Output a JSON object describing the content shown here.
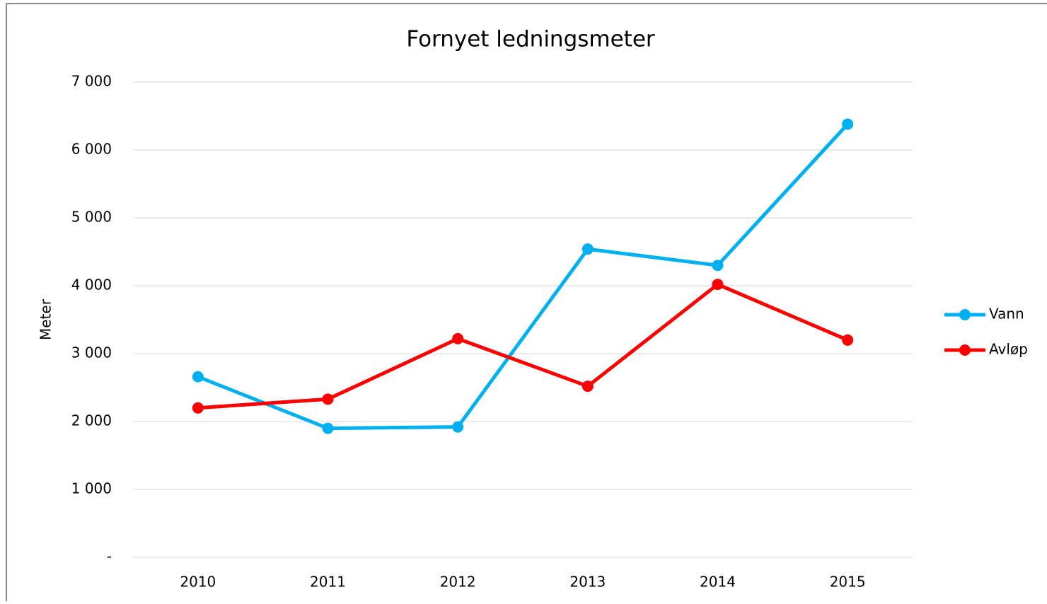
{
  "chart_data": {
    "type": "line",
    "title": "Fornyet ledningsmeter",
    "y_label": "Meter",
    "categories": [
      "2010",
      "2011",
      "2012",
      "2013",
      "2014",
      "2015"
    ],
    "series": [
      {
        "name": "Vann",
        "color": "#00b0f0",
        "values": [
          2660,
          1900,
          1920,
          4540,
          4300,
          6380
        ]
      },
      {
        "name": "Avløp",
        "color": "#ff0000",
        "values": [
          2200,
          2330,
          3220,
          2520,
          4020,
          3200
        ]
      }
    ],
    "ylim": [
      0,
      7000
    ],
    "yticks": [
      {
        "value": 0,
        "label": "-"
      },
      {
        "value": 1000,
        "label": "1 000"
      },
      {
        "value": 2000,
        "label": "2 000"
      },
      {
        "value": 3000,
        "label": "3 000"
      },
      {
        "value": 4000,
        "label": "4 000"
      },
      {
        "value": 5000,
        "label": "5 000"
      },
      {
        "value": 6000,
        "label": "6 000"
      },
      {
        "value": 7000,
        "label": "7 000"
      }
    ],
    "grid": true,
    "legend": "right"
  }
}
